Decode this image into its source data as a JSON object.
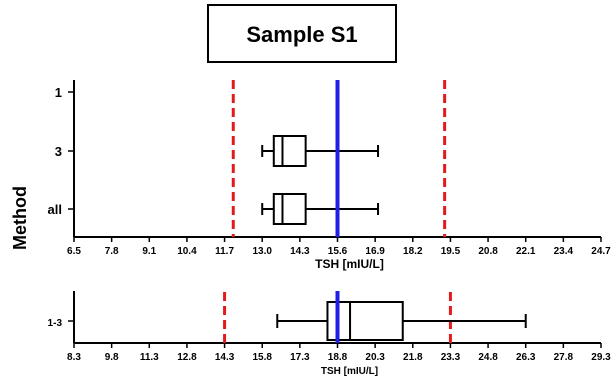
{
  "title": "Sample S1",
  "y_axis_title": "Method",
  "colors": {
    "reference_line": "#1f1fe6",
    "limit_line": "#e31a1c",
    "box": "#000000"
  },
  "chart_data": [
    {
      "type": "box",
      "title": "Sample S1",
      "xlabel": "TSH [mIU/L]",
      "ylabel": "Method",
      "xlim": [
        6.5,
        24.7
      ],
      "xticks": [
        "6.5",
        "7.8",
        "9.1",
        "10.4",
        "11.7",
        "13.0",
        "14.3",
        "15.6",
        "16.9",
        "18.2",
        "19.5",
        "20.8",
        "22.1",
        "23.4",
        "24.7"
      ],
      "categories": [
        "1",
        "3",
        "all"
      ],
      "boxes": [
        {
          "category": "1"
        },
        {
          "category": "3",
          "min": 13.0,
          "q1": 13.4,
          "median": 13.7,
          "q3": 14.5,
          "max": 17.0
        },
        {
          "category": "all",
          "min": 13.0,
          "q1": 13.4,
          "median": 13.7,
          "q3": 14.5,
          "max": 17.0
        }
      ],
      "reference_line": 15.6,
      "limit_lines": [
        12.0,
        19.3
      ],
      "grid": false
    },
    {
      "type": "box",
      "xlabel": "TSH [mIU/L]",
      "xlim": [
        8.3,
        29.3
      ],
      "xticks": [
        "8.3",
        "9.8",
        "11.3",
        "12.8",
        "14.3",
        "15.8",
        "17.3",
        "18.8",
        "20.3",
        "21.8",
        "23.3",
        "24.8",
        "26.3",
        "27.8",
        "29.3"
      ],
      "categories": [
        "1-3"
      ],
      "boxes": [
        {
          "category": "1-3",
          "min": 16.4,
          "q1": 18.4,
          "median": 19.3,
          "q3": 21.4,
          "max": 26.3
        }
      ],
      "reference_line": 18.8,
      "limit_lines": [
        14.3,
        23.3
      ],
      "grid": false
    }
  ]
}
